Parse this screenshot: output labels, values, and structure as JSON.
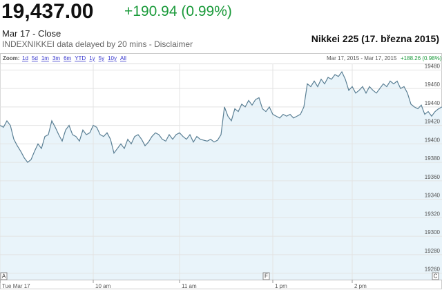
{
  "header": {
    "price": "19,437.00",
    "change": "+190.94 (0.99%)",
    "status": "Mar 17 - Close",
    "source_note": "INDEXNIKKEI data delayed by 20 mins - Disclaimer",
    "caption": "Nikkei 225 (17. března 2015)"
  },
  "chart_data": {
    "type": "line",
    "zoom_label": "Zoom:",
    "zoom_options": [
      "1d",
      "5d",
      "1m",
      "3m",
      "6m",
      "YTD",
      "1y",
      "5y",
      "10y",
      "All"
    ],
    "range_text": "Mar 17, 2015 - Mar 17, 2015",
    "range_change": "+188.26 (0.98%)",
    "xlim": [
      0,
      128
    ],
    "xticks": [
      {
        "value": 0,
        "label": "Tue Mar 17"
      },
      {
        "value": 27,
        "label": "10 am"
      },
      {
        "value": 52,
        "label": "11 am"
      },
      {
        "value": 79,
        "label": "1 pm"
      },
      {
        "value": 102,
        "label": "2 pm"
      }
    ],
    "ylim": [
      19253,
      19487
    ],
    "yticks": [
      19260,
      19280,
      19300,
      19320,
      19340,
      19360,
      19380,
      19400,
      19420,
      19440,
      19460,
      19480
    ],
    "grid": true,
    "annotations": [
      {
        "label": "A",
        "x": 1
      },
      {
        "label": "F",
        "x": 77
      },
      {
        "label": "C",
        "x": 126
      }
    ],
    "series": [
      {
        "color": "#5a7f94",
        "fill": "#e9f4fa",
        "values": [
          19420,
          19418,
          19425,
          19420,
          19405,
          19398,
          19392,
          19385,
          19380,
          19383,
          19392,
          19400,
          19395,
          19408,
          19410,
          19425,
          19418,
          19410,
          19403,
          19415,
          19420,
          19410,
          19408,
          19403,
          19415,
          19410,
          19412,
          19420,
          19418,
          19410,
          19408,
          19412,
          19405,
          19390,
          19395,
          19400,
          19395,
          19405,
          19400,
          19408,
          19410,
          19405,
          19398,
          19402,
          19408,
          19412,
          19410,
          19405,
          19403,
          19410,
          19405,
          19410,
          19412,
          19408,
          19405,
          19410,
          19402,
          19408,
          19405,
          19404,
          19403,
          19405,
          19402,
          19404,
          19410,
          19440,
          19430,
          19425,
          19438,
          19435,
          19443,
          19440,
          19447,
          19442,
          19448,
          19450,
          19438,
          19435,
          19440,
          19432,
          19430,
          19428,
          19432,
          19430,
          19432,
          19428,
          19430,
          19432,
          19440,
          19465,
          19462,
          19468,
          19462,
          19470,
          19465,
          19472,
          19470,
          19475,
          19473,
          19478,
          19470,
          19458,
          19462,
          19455,
          19458,
          19462,
          19455,
          19462,
          19458,
          19455,
          19460,
          19465,
          19462,
          19468,
          19465,
          19468,
          19460,
          19462,
          19455,
          19443,
          19440,
          19438,
          19442,
          19432,
          19435,
          19430,
          19435,
          19438,
          19440
        ]
      }
    ]
  }
}
